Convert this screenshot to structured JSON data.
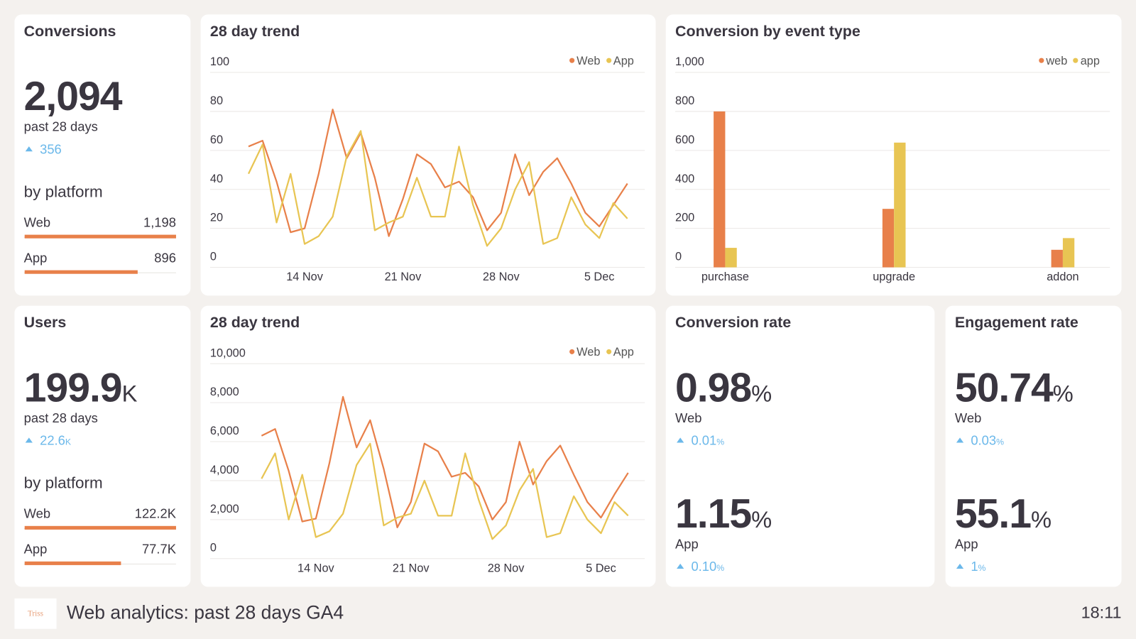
{
  "conversions": {
    "title": "Conversions",
    "value": "2,094",
    "period": "past 28 days",
    "change": "356",
    "platform_title": "by platform",
    "platforms": {
      "categories": [
        "Web",
        "App"
      ],
      "values": [
        1198,
        896
      ],
      "value_labels": [
        "1,198",
        "896"
      ],
      "color": "#e8804a"
    }
  },
  "conversions_trend": {
    "type": "line",
    "title": "28 day trend",
    "categories": [
      null,
      null,
      null,
      null,
      "14 Nov",
      null,
      null,
      null,
      null,
      null,
      null,
      "21 Nov",
      null,
      null,
      null,
      null,
      null,
      null,
      "28 Nov",
      null,
      null,
      null,
      null,
      null,
      null,
      "5 Dec",
      null,
      null
    ],
    "series": [
      {
        "name": "Web",
        "color": "#e8804a",
        "values": [
          62,
          65,
          44,
          18,
          20,
          48,
          81,
          56,
          69,
          46,
          16,
          35,
          58,
          53,
          41,
          44,
          36,
          19,
          28,
          58,
          37,
          49,
          56,
          43,
          28,
          21,
          32,
          43
        ]
      },
      {
        "name": "App",
        "color": "#e8c553",
        "values": [
          48,
          63,
          23,
          48,
          12,
          16,
          26,
          57,
          70,
          19,
          23,
          26,
          46,
          26,
          26,
          62,
          32,
          11,
          20,
          40,
          54,
          12,
          15,
          36,
          22,
          15,
          33,
          25
        ]
      }
    ],
    "ylim": [
      0,
      100
    ],
    "yticks": [
      0,
      20,
      40,
      60,
      80,
      100
    ],
    "grid": true,
    "legend": "top-right"
  },
  "conversions_by_event": {
    "type": "bar",
    "title": "Conversion by event type",
    "categories": [
      "purchase",
      "upgrade",
      "addon"
    ],
    "series": [
      {
        "name": "web",
        "color": "#e8804a",
        "values": [
          800,
          300,
          90
        ]
      },
      {
        "name": "app",
        "color": "#e8c553",
        "values": [
          100,
          640,
          150
        ]
      }
    ],
    "ylim": [
      0,
      1000
    ],
    "yticks": [
      0,
      200,
      400,
      600,
      800,
      {
        "value": 1000,
        "label": "1,000"
      }
    ],
    "grid": true,
    "legend": "top-right"
  },
  "users": {
    "title": "Users",
    "value": "199.9",
    "value_unit": "K",
    "period": "past 28 days",
    "change": "22.6",
    "change_unit": "K",
    "platform_title": "by platform",
    "platforms": {
      "categories": [
        "Web",
        "App"
      ],
      "values": [
        122200,
        77700
      ],
      "value_labels": [
        "122.2K",
        "77.7K"
      ],
      "color": "#e8804a"
    }
  },
  "users_trend": {
    "type": "line",
    "title": "28 day trend",
    "categories": [
      null,
      null,
      null,
      null,
      "14 Nov",
      null,
      null,
      null,
      null,
      null,
      null,
      "21 Nov",
      null,
      null,
      null,
      null,
      null,
      null,
      "28 Nov",
      null,
      null,
      null,
      null,
      null,
      null,
      "5 Dec",
      null,
      null
    ],
    "series": [
      {
        "name": "Web",
        "color": "#e8804a",
        "values": [
          6300,
          6650,
          4500,
          1900,
          2050,
          4900,
          8300,
          5700,
          7100,
          4600,
          1600,
          2900,
          5900,
          5500,
          4200,
          4400,
          3700,
          2000,
          2900,
          6000,
          3800,
          5000,
          5800,
          4300,
          2900,
          2100,
          3300,
          4400
        ]
      },
      {
        "name": "App",
        "color": "#e8c553",
        "values": [
          4100,
          5400,
          2000,
          4300,
          1100,
          1400,
          2300,
          4800,
          5900,
          1700,
          2100,
          2300,
          4000,
          2200,
          2200,
          5400,
          3000,
          1000,
          1700,
          3500,
          4600,
          1100,
          1300,
          3200,
          2000,
          1300,
          2900,
          2200
        ]
      }
    ],
    "ylim": [
      0,
      10000
    ],
    "yticks": [
      0,
      {
        "value": 2000,
        "label": "2,000"
      },
      {
        "value": 4000,
        "label": "4,000"
      },
      {
        "value": 6000,
        "label": "6,000"
      },
      {
        "value": 8000,
        "label": "8,000"
      },
      {
        "value": 10000,
        "label": "10,000"
      }
    ],
    "grid": true,
    "legend": "top-right"
  },
  "conversion_rate": {
    "title": "Conversion rate",
    "unit": "%",
    "rows": [
      {
        "value": "0.98",
        "label": "Web",
        "change": "0.01"
      },
      {
        "value": "1.15",
        "label": "App",
        "change": "0.10"
      }
    ]
  },
  "engagement_rate": {
    "title": "Engagement rate",
    "unit": "%",
    "rows": [
      {
        "value": "50.74",
        "label": "Web",
        "change": "0.03"
      },
      {
        "value": "55.1",
        "label": "App",
        "change": "1"
      }
    ]
  },
  "footer": {
    "logo": "Triss",
    "title": "Web analytics: past 28 days GA4",
    "time": "18:11"
  }
}
